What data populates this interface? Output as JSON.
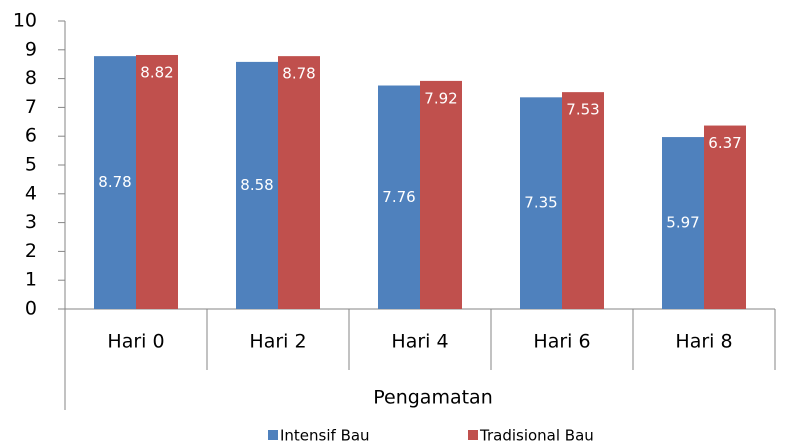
{
  "chart_data": {
    "type": "bar",
    "categories": [
      "Hari 0",
      "Hari 2",
      "Hari 4",
      "Hari 6",
      "Hari 8"
    ],
    "x_label": "Pengamatan",
    "series": [
      {
        "name": "Intensif Bau",
        "color": "#4f81bd",
        "values": [
          8.78,
          8.58,
          7.76,
          7.35,
          5.97
        ]
      },
      {
        "name": "Tradisional Bau",
        "color": "#c0504d",
        "values": [
          8.82,
          8.78,
          7.92,
          7.53,
          6.37
        ]
      }
    ],
    "ylim": [
      0,
      10
    ],
    "yticks": [
      0,
      1,
      2,
      3,
      4,
      5,
      6,
      7,
      8,
      9,
      10
    ],
    "grid": false,
    "legend": "bottom"
  }
}
